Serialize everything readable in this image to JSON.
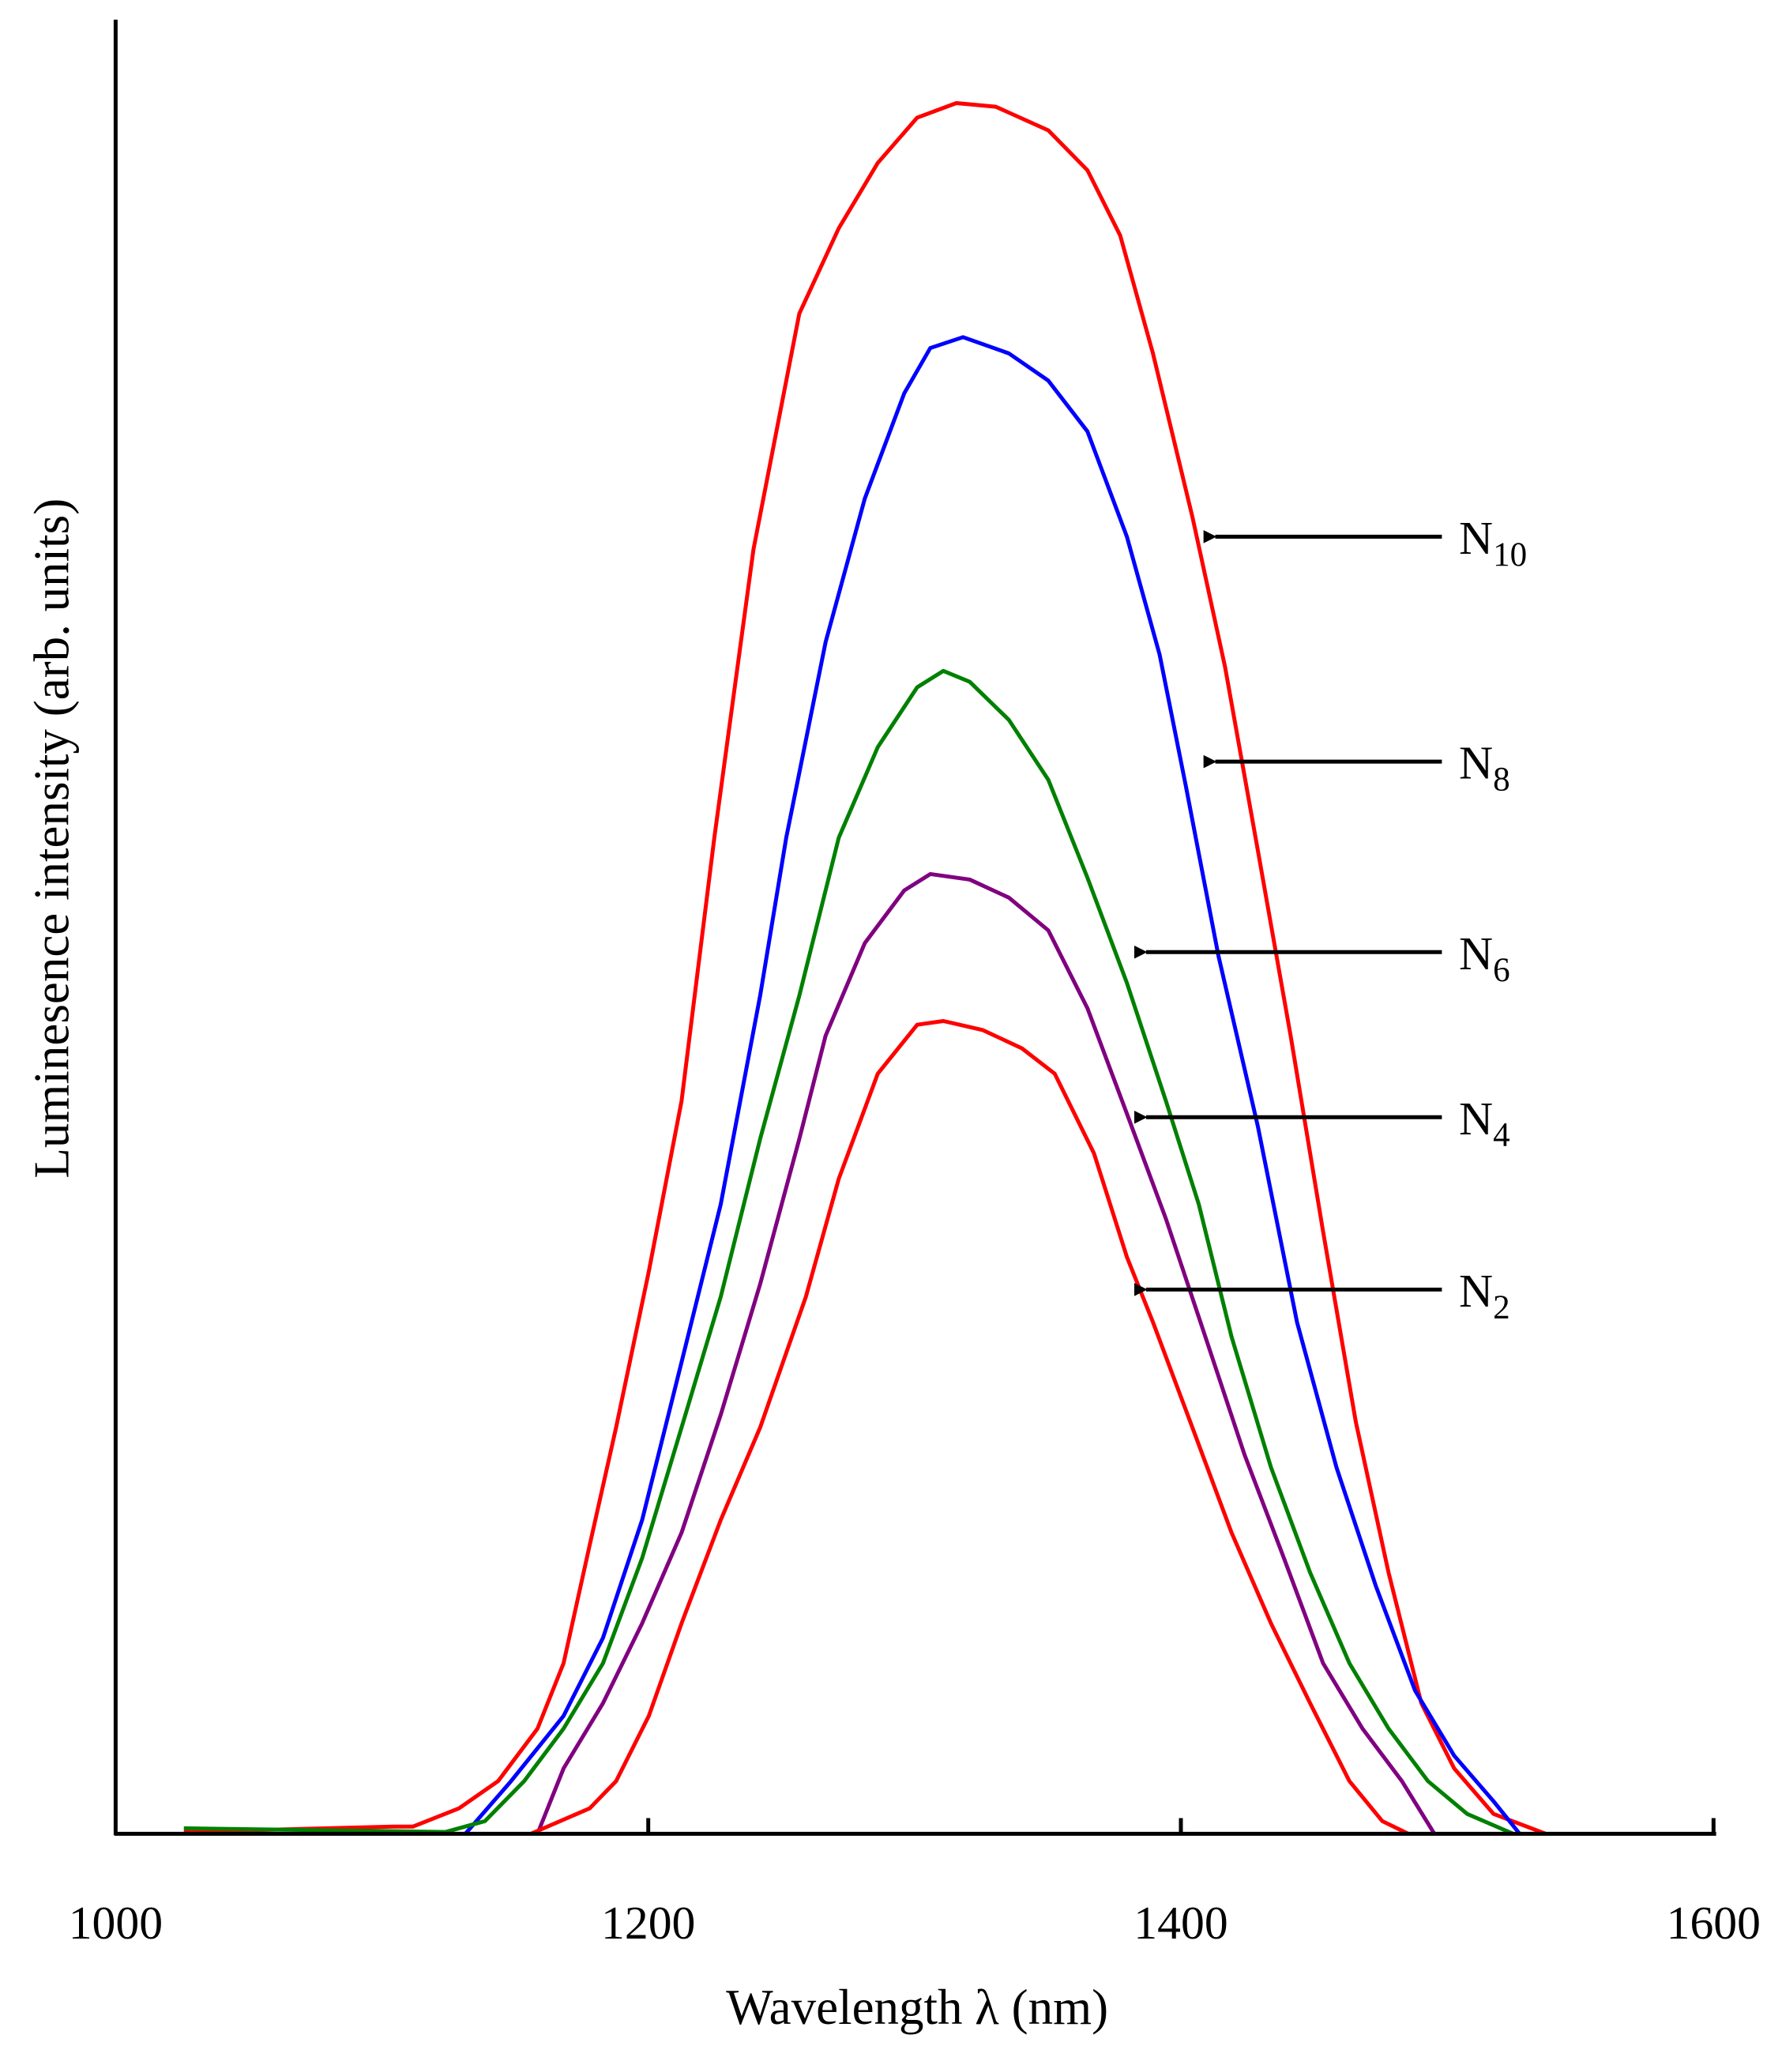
{
  "chart_data": {
    "type": "line",
    "title": "",
    "xlabel": "Wavelength λ (nm)",
    "ylabel": "Luminesence intensity (arb. units)",
    "xlim": [
      1000,
      1600
    ],
    "ylim": [
      0,
      100
    ],
    "xticks": [
      1000,
      1200,
      1400,
      1600
    ],
    "yticks": [],
    "grid": false,
    "legend": "arrow annotations on right",
    "series": [
      {
        "name": "N10",
        "label_main": "N",
        "label_sub": "10",
        "color": "#ff0000",
        "annotation_point": [
          1408,
          71.5
        ],
        "x": [
          1025.6,
          1104.3,
          1111.6,
          1128.9,
          1143.6,
          1158.4,
          1168.2,
          1178.0,
          1187.9,
          1200.2,
          1212.5,
          1224.8,
          1239.5,
          1256.7,
          1271.5,
          1286.2,
          1301.0,
          1315.7,
          1330.5,
          1350.2,
          1364.9,
          1377.2,
          1389.5,
          1404.3,
          1416.6,
          1428.9,
          1441.2,
          1453.4,
          1465.7,
          1478.0,
          1490.3,
          1502.6,
          1517.4,
          1537.0
        ],
        "y": [
          0.1,
          0.4,
          0.4,
          1.4,
          2.9,
          5.8,
          9.4,
          15.9,
          22.4,
          31.0,
          40.4,
          54.9,
          70.8,
          83.8,
          88.5,
          92.1,
          94.6,
          95.4,
          95.2,
          93.9,
          91.7,
          88.1,
          81.6,
          72.6,
          64.3,
          54.2,
          44.0,
          33.2,
          22.7,
          14.4,
          7.2,
          3.6,
          1.1,
          0
        ]
      },
      {
        "name": "N8",
        "label_main": "N",
        "label_sub": "8",
        "color": "#0000ff",
        "annotation_point": [
          1408,
          59.1
        ],
        "x": [
          1131.3,
          1148.5,
          1168.2,
          1183.0,
          1197.7,
          1212.5,
          1227.2,
          1242.0,
          1251.8,
          1266.6,
          1281.3,
          1296.1,
          1305.9,
          1318.2,
          1335.4,
          1350.2,
          1364.9,
          1379.7,
          1392.0,
          1401.8,
          1414.1,
          1428.9,
          1443.6,
          1458.4,
          1473.1,
          1487.9,
          1502.6,
          1517.4,
          1527.2
        ],
        "y": [
          0,
          2.9,
          6.5,
          10.8,
          17.3,
          26.0,
          34.7,
          46.2,
          54.9,
          65.7,
          73.6,
          79.4,
          81.9,
          82.5,
          81.6,
          80.1,
          77.3,
          71.5,
          65.0,
          57.8,
          48.4,
          39.0,
          28.2,
          20.2,
          13.7,
          7.9,
          4.3,
          1.8,
          0
        ]
      },
      {
        "name": "N6",
        "label_main": "N",
        "label_sub": "6",
        "color": "#008000",
        "annotation_point": [
          1382,
          48.6
        ],
        "x": [
          1025.6,
          1123.9,
          1138.7,
          1153.4,
          1168.2,
          1183.0,
          1197.7,
          1212.5,
          1227.2,
          1242.0,
          1256.7,
          1271.5,
          1286.2,
          1301.0,
          1310.8,
          1320.7,
          1335.4,
          1350.2,
          1364.9,
          1379.7,
          1394.4,
          1406.7,
          1419.0,
          1433.8,
          1448.5,
          1463.3,
          1478.0,
          1492.8,
          1507.5,
          1524.8
        ],
        "y": [
          0.3,
          0.1,
          0.7,
          2.9,
          5.8,
          9.4,
          15.2,
          22.4,
          29.6,
          38.3,
          46.2,
          54.9,
          59.9,
          63.2,
          64.1,
          63.5,
          61.4,
          58.1,
          52.7,
          46.9,
          40.4,
          34.7,
          27.4,
          20.2,
          14.4,
          9.4,
          5.8,
          2.9,
          1.1,
          0
        ]
      },
      {
        "name": "N4",
        "label_main": "N",
        "label_sub": "4",
        "color": "#800080",
        "annotation_point": [
          1382,
          39.5
        ],
        "x": [
          1158.4,
          1168.2,
          1183.0,
          1197.7,
          1212.5,
          1227.2,
          1242.0,
          1256.7,
          1266.6,
          1281.3,
          1296.1,
          1305.9,
          1320.7,
          1335.4,
          1350.2,
          1364.9,
          1379.7,
          1394.4,
          1409.2,
          1423.9,
          1438.7,
          1453.4,
          1468.2,
          1483.0,
          1495.2
        ],
        "y": [
          0,
          3.6,
          7.2,
          11.6,
          16.6,
          23.1,
          30.3,
          38.3,
          44.0,
          49.1,
          52.0,
          52.9,
          52.6,
          51.6,
          49.8,
          45.5,
          39.7,
          33.9,
          27.4,
          20.9,
          15.2,
          9.4,
          5.8,
          2.9,
          0
        ]
      },
      {
        "name": "N2",
        "label_main": "N",
        "label_sub": "2",
        "color": "#ff0000",
        "annotation_point": [
          1382,
          30.0
        ],
        "x": [
          1155.9,
          1178.0,
          1187.9,
          1200.2,
          1212.5,
          1227.2,
          1242.0,
          1259.2,
          1271.5,
          1286.2,
          1301.0,
          1310.8,
          1325.6,
          1340.3,
          1352.6,
          1367.4,
          1379.7,
          1389.5,
          1404.3,
          1419.0,
          1433.8,
          1448.5,
          1463.3,
          1475.6,
          1485.4
        ],
        "y": [
          0,
          1.4,
          2.9,
          6.5,
          11.6,
          17.3,
          22.4,
          29.6,
          36.1,
          41.9,
          44.6,
          44.8,
          44.3,
          43.3,
          41.9,
          37.5,
          31.8,
          28.2,
          22.4,
          16.6,
          11.6,
          7.2,
          2.9,
          0.7,
          0
        ]
      }
    ],
    "annotation_tail_x": 1498
  }
}
